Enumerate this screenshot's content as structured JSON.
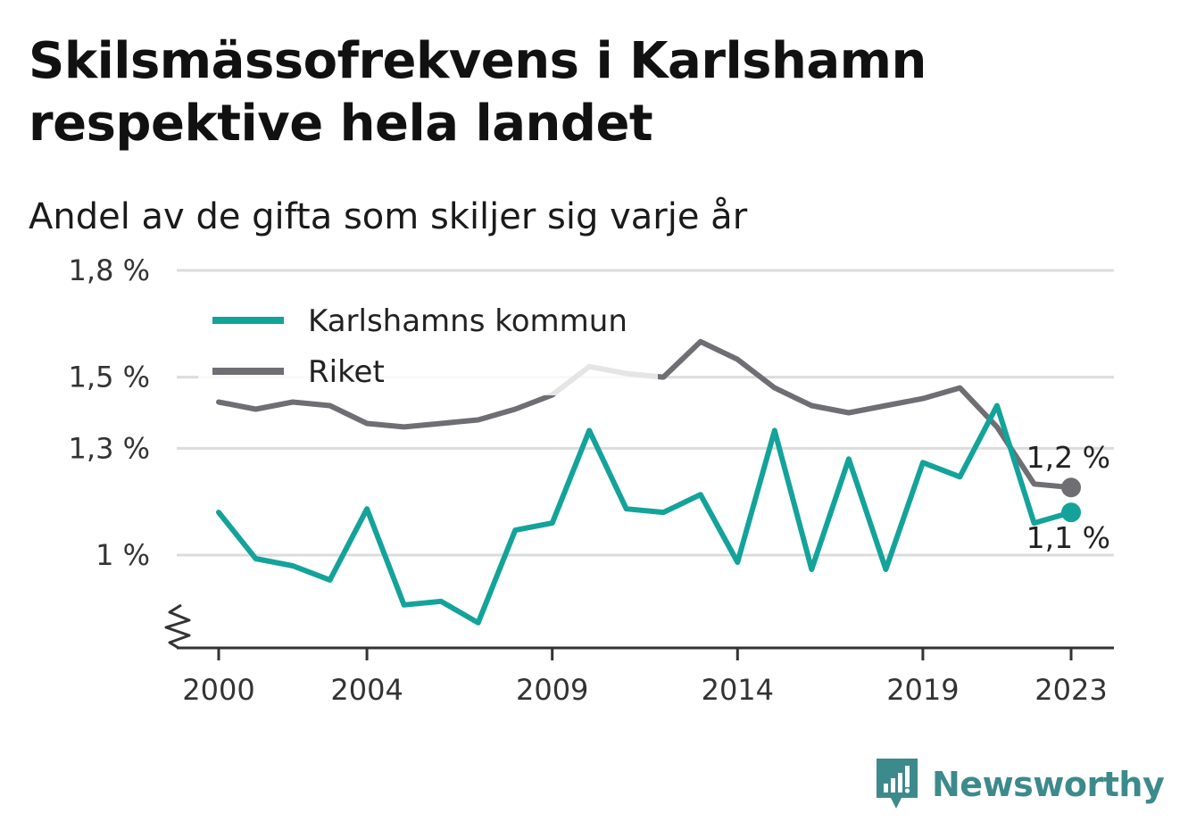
{
  "title_line1": "Skilsmässofrekvens i Karlshamn",
  "title_line2": "respektive hela landet",
  "subtitle": "Andel av de gifta som skiljer sig varje år",
  "brand": {
    "name": "Newsworthy",
    "icon": "newsworthy-logo-icon",
    "color": "#3d8a8c"
  },
  "chart_data": {
    "type": "line",
    "x": [
      2000,
      2001,
      2002,
      2003,
      2004,
      2005,
      2006,
      2007,
      2008,
      2009,
      2010,
      2011,
      2012,
      2013,
      2014,
      2015,
      2016,
      2017,
      2018,
      2019,
      2020,
      2021,
      2022,
      2023
    ],
    "series": [
      {
        "name": "Karlshamns kommun",
        "color": "#13a39a",
        "values": [
          1.12,
          0.99,
          0.97,
          0.93,
          1.13,
          0.86,
          0.87,
          0.81,
          1.07,
          1.09,
          1.35,
          1.13,
          1.12,
          1.17,
          0.98,
          1.35,
          0.96,
          1.27,
          0.96,
          1.26,
          1.22,
          1.42,
          1.09,
          1.12
        ]
      },
      {
        "name": "Riket",
        "color": "#6e6e73",
        "values": [
          1.43,
          1.41,
          1.43,
          1.42,
          1.37,
          1.36,
          1.37,
          1.38,
          1.41,
          1.45,
          1.53,
          1.51,
          1.5,
          1.6,
          1.55,
          1.47,
          1.42,
          1.4,
          1.42,
          1.44,
          1.47,
          1.36,
          1.2,
          1.19
        ]
      }
    ],
    "y_ticks": [
      {
        "value": 1.0,
        "label": "1 %"
      },
      {
        "value": 1.3,
        "label": "1,3 %"
      },
      {
        "value": 1.5,
        "label": "1,5 %"
      },
      {
        "value": 1.8,
        "label": "1,8 %"
      }
    ],
    "x_ticks": [
      {
        "value": 2000,
        "label": "2000"
      },
      {
        "value": 2004,
        "label": "2004"
      },
      {
        "value": 2009,
        "label": "2009"
      },
      {
        "value": 2014,
        "label": "2014"
      },
      {
        "value": 2019,
        "label": "2019"
      },
      {
        "value": 2023,
        "label": "2023"
      }
    ],
    "end_labels": {
      "Riket": "1,2 %",
      "Karlshamns kommun": "1,1 %"
    },
    "ylim": [
      0.7,
      1.8
    ],
    "axis_break": true,
    "grid": true,
    "legend_position": "top-left"
  }
}
